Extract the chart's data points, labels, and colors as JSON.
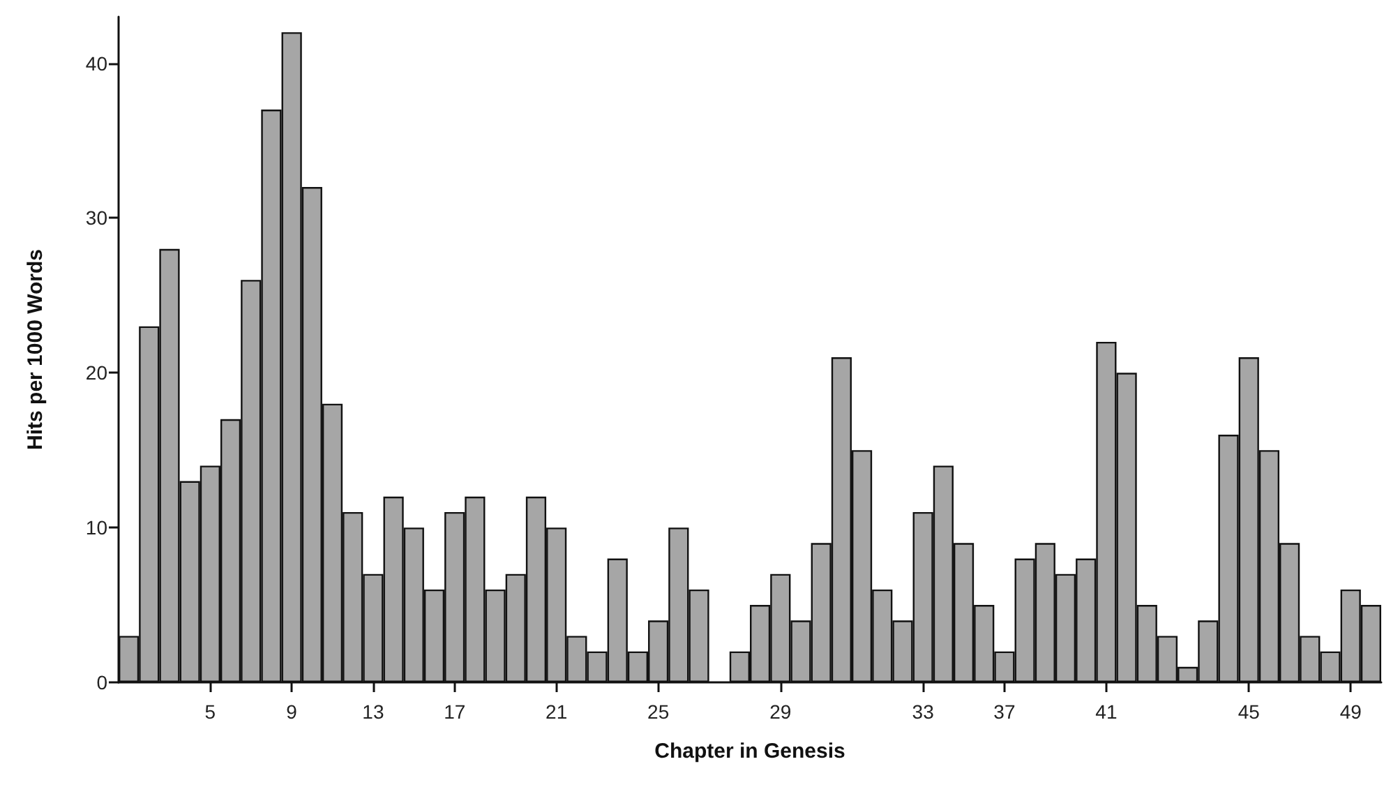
{
  "chart_data": {
    "type": "bar",
    "xlabel": "Chapter in Genesis",
    "ylabel": "Hits per 1000 Words",
    "categories": [
      null,
      null,
      null,
      null,
      "5",
      null,
      null,
      null,
      "9",
      null,
      null,
      null,
      "13",
      null,
      null,
      null,
      "17",
      null,
      null,
      null,
      null,
      "21",
      null,
      null,
      null,
      null,
      "25",
      null,
      null,
      null,
      null,
      null,
      "29",
      null,
      null,
      null,
      null,
      null,
      null,
      "33",
      null,
      null,
      null,
      "37",
      null,
      null,
      null,
      null,
      "41",
      null,
      null,
      null,
      null,
      null,
      null,
      "45",
      null,
      null,
      null,
      null,
      "49",
      null
    ],
    "values": [
      3,
      23,
      28,
      13,
      14,
      17,
      26,
      37,
      42,
      32,
      18,
      11,
      7,
      12,
      10,
      6,
      11,
      12,
      6,
      7,
      12,
      10,
      3,
      2,
      8,
      2,
      4,
      10,
      6,
      0,
      2,
      5,
      7,
      4,
      9,
      21,
      15,
      6,
      4,
      11,
      14,
      9,
      5,
      2,
      8,
      9,
      7,
      8,
      22,
      20,
      5,
      3,
      1,
      4,
      16,
      21,
      15,
      9,
      3,
      2,
      6,
      5
    ],
    "color": "#a6a6a6",
    "ylim": [
      0,
      43
    ],
    "yticks": [
      0,
      10,
      20,
      30,
      40
    ],
    "grid": false
  }
}
